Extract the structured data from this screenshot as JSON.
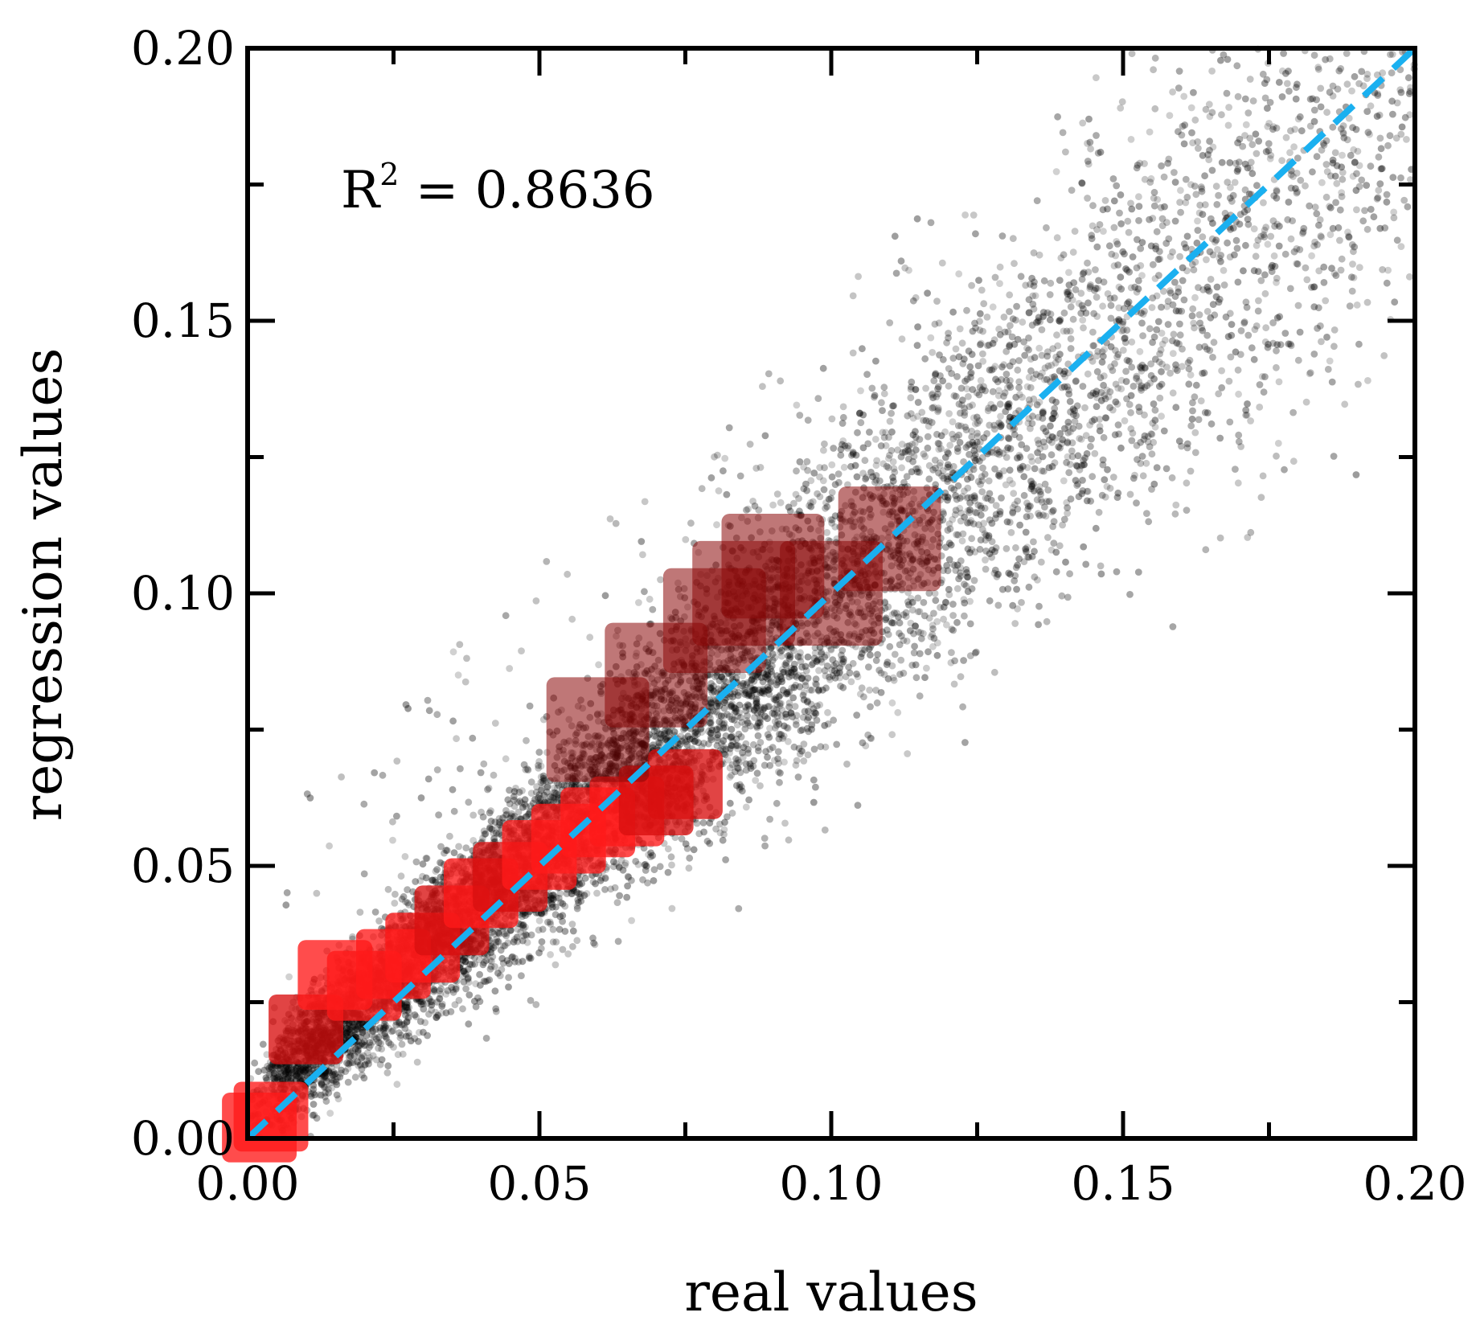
{
  "chart_data": {
    "type": "scatter",
    "title": "",
    "xlabel": "real values",
    "ylabel": "regression values",
    "xlim": [
      0.0,
      0.2
    ],
    "ylim": [
      0.0,
      0.2
    ],
    "x_ticks": [
      "0.00",
      "0.05",
      "0.10",
      "0.15",
      "0.20"
    ],
    "y_ticks": [
      "0.00",
      "0.05",
      "0.10",
      "0.15",
      "0.20"
    ],
    "x_tick_values": [
      0.0,
      0.05,
      0.1,
      0.15,
      0.2
    ],
    "y_tick_values": [
      0.0,
      0.05,
      0.1,
      0.15,
      0.2
    ],
    "minor_tick_step": 0.025,
    "grid": false,
    "annotation": {
      "prefix": "R",
      "superscript": "2",
      "suffix": " = 0.8636"
    },
    "reference_line": {
      "name": "y = x",
      "style": "dashed",
      "x": [
        0.0,
        0.2
      ],
      "y": [
        0.0,
        0.2
      ]
    },
    "series": [
      {
        "name": "scatter points",
        "kind": "scatter",
        "center_path": [
          [
            0.0,
            0.0
          ],
          [
            0.05,
            0.05
          ],
          [
            0.1,
            0.1
          ],
          [
            0.15,
            0.15
          ],
          [
            0.2,
            0.2
          ]
        ],
        "regression_slope": 0.93,
        "regression_intercept": 0.006,
        "spread_sigma": [
          [
            0.0,
            0.004
          ],
          [
            0.05,
            0.008
          ],
          [
            0.1,
            0.014
          ],
          [
            0.15,
            0.018
          ],
          [
            0.2,
            0.022
          ]
        ],
        "sample_size": 9000,
        "x_distribution": [
          [
            0.0,
            0.02
          ],
          [
            0.01,
            1.0
          ],
          [
            0.03,
            1.0
          ],
          [
            0.06,
            0.85
          ],
          [
            0.09,
            0.65
          ],
          [
            0.12,
            0.45
          ],
          [
            0.15,
            0.3
          ],
          [
            0.2,
            0.18
          ]
        ],
        "outlier_fraction": 0.015
      },
      {
        "name": "high-density region",
        "kind": "density",
        "cells": [
          [
            0.002,
            0.002,
            3
          ],
          [
            0.004,
            0.004,
            3
          ],
          [
            0.01,
            0.02,
            2
          ],
          [
            0.015,
            0.03,
            3
          ],
          [
            0.02,
            0.028,
            3
          ],
          [
            0.025,
            0.032,
            3
          ],
          [
            0.03,
            0.035,
            3
          ],
          [
            0.035,
            0.04,
            2
          ],
          [
            0.04,
            0.045,
            3
          ],
          [
            0.045,
            0.048,
            2
          ],
          [
            0.05,
            0.052,
            3
          ],
          [
            0.055,
            0.055,
            3
          ],
          [
            0.06,
            0.058,
            3
          ],
          [
            0.065,
            0.06,
            3
          ],
          [
            0.07,
            0.062,
            2
          ],
          [
            0.075,
            0.065,
            2
          ],
          [
            0.06,
            0.075,
            1
          ],
          [
            0.07,
            0.085,
            1
          ],
          [
            0.08,
            0.095,
            1
          ],
          [
            0.085,
            0.1,
            1
          ],
          [
            0.09,
            0.105,
            1
          ],
          [
            0.1,
            0.1,
            1
          ],
          [
            0.11,
            0.11,
            1
          ]
        ],
        "levels": [
          "#3a0000",
          "#8a0808",
          "#d81010",
          "#ff1a1a"
        ]
      }
    ]
  },
  "colors": {
    "points": "#000000",
    "reference_line": "#1ab0f0",
    "axes": "#000000"
  }
}
